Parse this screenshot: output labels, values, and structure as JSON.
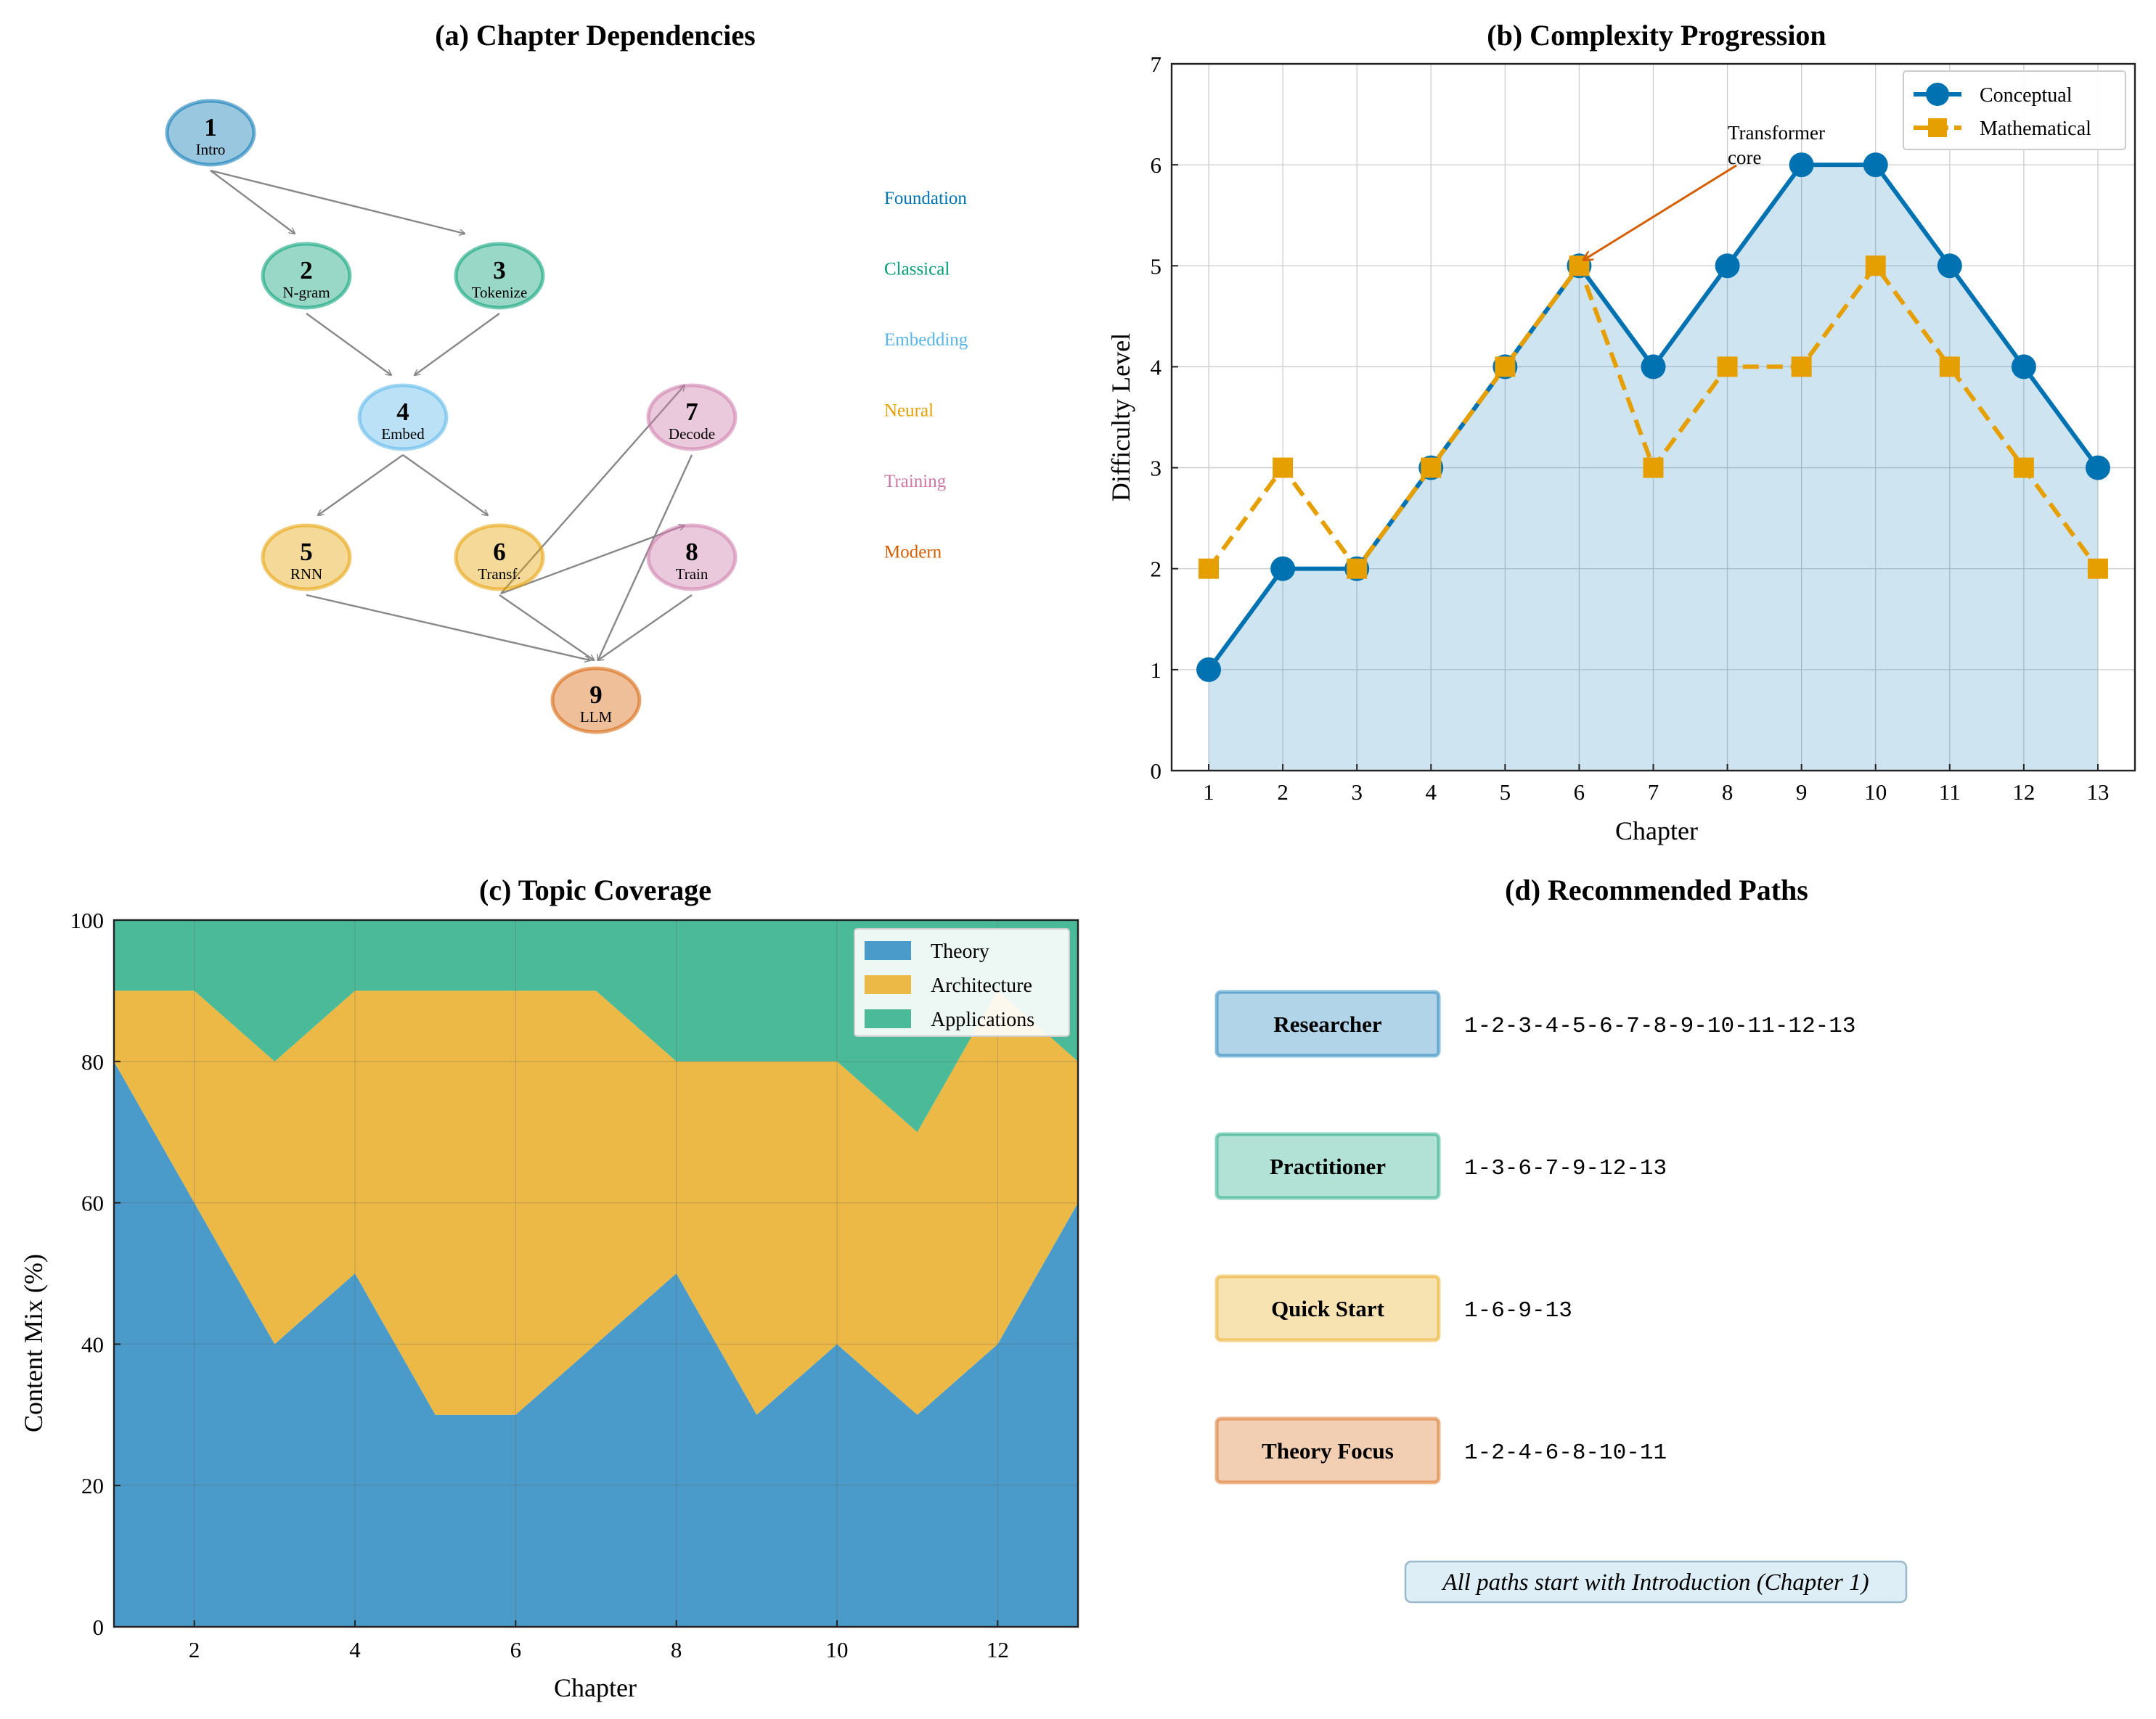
{
  "chart_data": [
    {
      "type": "diagram",
      "title": "(a) Chapter Dependencies",
      "categories": [
        {
          "name": "Foundation",
          "color": "#0072B2"
        },
        {
          "name": "Classical",
          "color": "#009E73"
        },
        {
          "name": "Embedding",
          "color": "#56B4E9"
        },
        {
          "name": "Neural",
          "color": "#E69F00"
        },
        {
          "name": "Training",
          "color": "#CC79A7"
        },
        {
          "name": "Modern",
          "color": "#D55E00"
        }
      ],
      "nodes": [
        {
          "id": "1",
          "label": "Intro",
          "category": "Foundation"
        },
        {
          "id": "2",
          "label": "N-gram",
          "category": "Classical"
        },
        {
          "id": "3",
          "label": "Tokenize",
          "category": "Classical"
        },
        {
          "id": "4",
          "label": "Embed",
          "category": "Embedding"
        },
        {
          "id": "5",
          "label": "RNN",
          "category": "Neural"
        },
        {
          "id": "6",
          "label": "Transf.",
          "category": "Neural"
        },
        {
          "id": "7",
          "label": "Decode",
          "category": "Training"
        },
        {
          "id": "8",
          "label": "Train",
          "category": "Training"
        },
        {
          "id": "9",
          "label": "LLM",
          "category": "Modern"
        }
      ],
      "edges": [
        [
          "1",
          "2"
        ],
        [
          "1",
          "3"
        ],
        [
          "2",
          "4"
        ],
        [
          "3",
          "4"
        ],
        [
          "4",
          "5"
        ],
        [
          "4",
          "6"
        ],
        [
          "6",
          "7"
        ],
        [
          "6",
          "8"
        ],
        [
          "6",
          "9"
        ],
        [
          "5",
          "9"
        ],
        [
          "7",
          "9"
        ],
        [
          "8",
          "9"
        ]
      ]
    },
    {
      "type": "line",
      "title": "(b) Complexity Progression",
      "xlabel": "Chapter",
      "ylabel": "Difficulty Level",
      "x": [
        1,
        2,
        3,
        4,
        5,
        6,
        7,
        8,
        9,
        10,
        11,
        12,
        13
      ],
      "xlim": [
        0.5,
        13.5
      ],
      "ylim": [
        0,
        7
      ],
      "yticks": [
        0,
        1,
        2,
        3,
        4,
        5,
        6,
        7
      ],
      "series": [
        {
          "name": "Conceptual",
          "values": [
            1,
            2,
            2,
            3,
            4,
            5,
            4,
            5,
            6,
            6,
            5,
            4,
            3
          ],
          "color": "#0072B2"
        },
        {
          "name": "Mathematical",
          "values": [
            2,
            3,
            2,
            3,
            4,
            5,
            3,
            4,
            4,
            5,
            4,
            3,
            2
          ],
          "color": "#E69F00"
        }
      ],
      "annotation": {
        "line1": "Transformer",
        "line2": "core",
        "x": 6,
        "y": 5
      },
      "legend": "top-right"
    },
    {
      "type": "area",
      "title": "(c) Topic Coverage",
      "xlabel": "Chapter",
      "ylabel": "Content Mix (%)",
      "x": [
        1,
        2,
        3,
        4,
        5,
        6,
        7,
        8,
        9,
        10,
        11,
        12,
        13
      ],
      "xlim": [
        1,
        13
      ],
      "ylim": [
        0,
        100
      ],
      "xticks": [
        2,
        4,
        6,
        8,
        10,
        12
      ],
      "yticks": [
        0,
        20,
        40,
        60,
        80,
        100
      ],
      "series": [
        {
          "name": "Theory",
          "values": [
            80,
            60,
            40,
            50,
            30,
            30,
            40,
            50,
            30,
            40,
            30,
            40,
            60
          ],
          "color": "#4A9BC9"
        },
        {
          "name": "Architecture",
          "values": [
            10,
            30,
            40,
            40,
            60,
            60,
            50,
            30,
            50,
            40,
            40,
            50,
            20
          ],
          "color": "#ECB947"
        },
        {
          "name": "Applications",
          "values": [
            10,
            10,
            20,
            10,
            10,
            10,
            10,
            20,
            20,
            20,
            30,
            10,
            20
          ],
          "color": "#4ABA98"
        }
      ],
      "legend": "top-right"
    },
    {
      "type": "table",
      "title": "(d) Recommended Paths",
      "paths": [
        {
          "name": "Researcher",
          "sequence": "1-2-3-4-5-6-7-8-9-10-11-12-13",
          "color": "#0072B2"
        },
        {
          "name": "Practitioner",
          "sequence": "1-3-6-7-9-12-13",
          "color": "#009E73"
        },
        {
          "name": "Quick Start",
          "sequence": "1-6-9-13",
          "color": "#E69F00"
        },
        {
          "name": "Theory Focus",
          "sequence": "1-2-4-6-8-10-11",
          "color": "#D55E00"
        }
      ],
      "note": "All paths start with Introduction (Chapter 1)"
    }
  ]
}
